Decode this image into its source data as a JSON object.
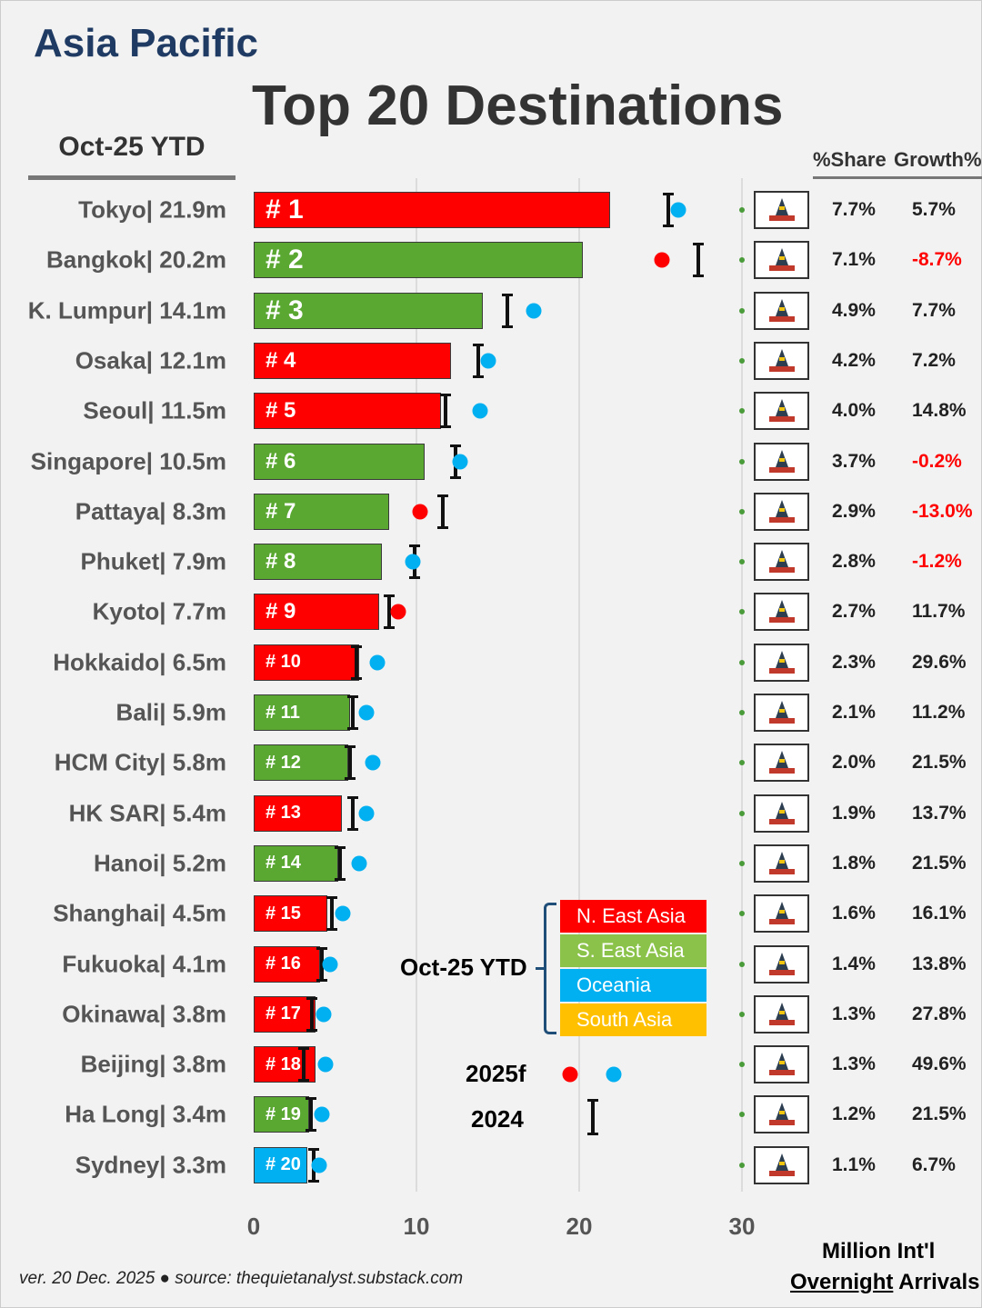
{
  "header": {
    "region": "Asia Pacific",
    "title": "Top 20 Destinations",
    "period": "Oct-25 YTD",
    "share_header": "%Share",
    "growth_header": "Growth%"
  },
  "legend": {
    "period": "Oct-25 YTD",
    "regions": [
      {
        "name": "N. East Asia",
        "color": "#ff0000"
      },
      {
        "name": "S. East Asia",
        "color": "#8bc34a"
      },
      {
        "name": "Oceania",
        "color": "#00b0f0"
      },
      {
        "name": "South Asia",
        "color": "#ffc000"
      }
    ],
    "forecast_label": "2025f",
    "prior_label": "2024"
  },
  "footer": {
    "note": "ver. 20 Dec. 2025 ● source: thequietanalyst.substack.com",
    "units_line1": "Million Int'l",
    "units_line2a": "Overnight",
    "units_line2b": " Arrivals"
  },
  "chart_data": {
    "type": "bar",
    "orientation": "horizontal",
    "xlim": [
      0,
      30
    ],
    "xticks": [
      "0",
      "10",
      "20",
      "30"
    ],
    "xlabel": "Million Int'l Overnight Arrivals",
    "grid": true,
    "series_colors": {
      "N. East Asia": "#ff0000",
      "S. East Asia": "#5aa832",
      "Oceania": "#00b0f0",
      "South Asia": "#ffc000"
    },
    "rows": [
      {
        "rank": "# 1",
        "label": "Tokyo| 21.9m",
        "value": 21.9,
        "region": "N. East Asia",
        "v2024": 25.5,
        "f2025": 26.1,
        "dot": "#00b0f0",
        "icon": "tokyo-tower-icon",
        "share": "7.7%",
        "growth": "5.7%",
        "neg": false
      },
      {
        "rank": "# 2",
        "label": "Bangkok| 20.2m",
        "value": 20.2,
        "region": "S. East Asia",
        "v2024": 27.3,
        "f2025": 25.1,
        "dot": "#ff0000",
        "icon": "muay-thai-icon",
        "share": "7.1%",
        "growth": "-8.7%",
        "neg": true
      },
      {
        "rank": "# 3",
        "label": "K. Lumpur| 14.1m",
        "value": 14.1,
        "region": "S. East Asia",
        "v2024": 15.6,
        "f2025": 17.2,
        "dot": "#00b0f0",
        "icon": "petronas-towers-icon",
        "share": "4.9%",
        "growth": "7.7%",
        "neg": false
      },
      {
        "rank": "# 4",
        "label": "Osaka| 12.1m",
        "value": 12.1,
        "region": "N. East Asia",
        "v2024": 13.8,
        "f2025": 14.4,
        "dot": "#00b0f0",
        "icon": "osaka-castle-icon",
        "share": "4.2%",
        "growth": "7.2%",
        "neg": false
      },
      {
        "rank": "# 5",
        "label": "Seoul| 11.5m",
        "value": 11.5,
        "region": "N. East Asia",
        "v2024": 11.8,
        "f2025": 13.9,
        "dot": "#00b0f0",
        "icon": "seoul-icon",
        "share": "4.0%",
        "growth": "14.8%",
        "neg": false
      },
      {
        "rank": "# 6",
        "label": "Singapore| 10.5m",
        "value": 10.5,
        "region": "S. East Asia",
        "v2024": 12.4,
        "f2025": 12.7,
        "dot": "#00b0f0",
        "icon": "marina-bay-icon",
        "share": "3.7%",
        "growth": "-0.2%",
        "neg": true
      },
      {
        "rank": "# 7",
        "label": "Pattaya| 8.3m",
        "value": 8.3,
        "region": "S. East Asia",
        "v2024": 11.6,
        "f2025": 10.2,
        "dot": "#ff0000",
        "icon": "pattaya-sign-icon",
        "share": "2.9%",
        "growth": "-13.0%",
        "neg": true
      },
      {
        "rank": "# 8",
        "label": "Phuket| 7.9m",
        "value": 7.9,
        "region": "S. East Asia",
        "v2024": 9.9,
        "f2025": 9.8,
        "dot": "#00b0f0",
        "icon": "big-buddha-icon",
        "share": "2.8%",
        "growth": "-1.2%",
        "neg": true
      },
      {
        "rank": "# 9",
        "label": "Kyoto| 7.7m",
        "value": 7.7,
        "region": "N. East Asia",
        "v2024": 8.3,
        "f2025": 8.9,
        "dot": "#ff0000",
        "icon": "geisha-icon",
        "share": "2.7%",
        "growth": "11.7%",
        "neg": false
      },
      {
        "rank": "# 10",
        "label": "Hokkaido| 6.5m",
        "value": 6.5,
        "region": "N. East Asia",
        "v2024": 6.3,
        "f2025": 7.6,
        "dot": "#00b0f0",
        "icon": "torii-gate-icon",
        "share": "2.3%",
        "growth": "29.6%",
        "neg": false
      },
      {
        "rank": "# 11",
        "label": "Bali| 5.9m",
        "value": 5.9,
        "region": "S. East Asia",
        "v2024": 6.1,
        "f2025": 6.9,
        "dot": "#00b0f0",
        "icon": "bali-gate-icon",
        "share": "2.1%",
        "growth": "11.2%",
        "neg": false
      },
      {
        "rank": "# 12",
        "label": "HCM City| 5.8m",
        "value": 5.8,
        "region": "S. East Asia",
        "v2024": 5.9,
        "f2025": 7.3,
        "dot": "#00b0f0",
        "icon": "city-hall-icon",
        "share": "2.0%",
        "growth": "21.5%",
        "neg": false
      },
      {
        "rank": "# 13",
        "label": "HK SAR| 5.4m",
        "value": 5.4,
        "region": "N. East Asia",
        "v2024": 6.1,
        "f2025": 6.9,
        "dot": "#00b0f0",
        "icon": "skyline-icon",
        "share": "1.9%",
        "growth": "13.7%",
        "neg": false
      },
      {
        "rank": "# 14",
        "label": "Hanoi| 5.2m",
        "value": 5.2,
        "region": "S. East Asia",
        "v2024": 5.3,
        "f2025": 6.5,
        "dot": "#00b0f0",
        "icon": "temple-icon",
        "share": "1.8%",
        "growth": "21.5%",
        "neg": false
      },
      {
        "rank": "# 15",
        "label": "Shanghai| 4.5m",
        "value": 4.5,
        "region": "N. East Asia",
        "v2024": 4.8,
        "f2025": 5.5,
        "dot": "#00b0f0",
        "icon": "pearl-tower-icon",
        "share": "1.6%",
        "growth": "16.1%",
        "neg": false
      },
      {
        "rank": "# 16",
        "label": "Fukuoka| 4.1m",
        "value": 4.1,
        "region": "N. East Asia",
        "v2024": 4.2,
        "f2025": 4.7,
        "dot": "#00b0f0",
        "icon": "flower-emblem-icon",
        "share": "1.4%",
        "growth": "13.8%",
        "neg": false
      },
      {
        "rank": "# 17",
        "label": "Okinawa| 3.8m",
        "value": 3.8,
        "region": "N. East Asia",
        "v2024": 3.6,
        "f2025": 4.3,
        "dot": "#00b0f0",
        "icon": "shisa-icon",
        "share": "1.3%",
        "growth": "27.8%",
        "neg": false
      },
      {
        "rank": "# 18",
        "label": "Beijing| 3.8m",
        "value": 3.8,
        "region": "N. East Asia",
        "v2024": 3.1,
        "f2025": 4.4,
        "dot": "#00b0f0",
        "icon": "tiananmen-icon",
        "share": "1.3%",
        "growth": "49.6%",
        "neg": false
      },
      {
        "rank": "# 19",
        "label": "Ha Long| 3.4m",
        "value": 3.4,
        "region": "S. East Asia",
        "v2024": 3.5,
        "f2025": 4.2,
        "dot": "#00b0f0",
        "icon": "ha-long-bay-icon",
        "share": "1.2%",
        "growth": "21.5%",
        "neg": false
      },
      {
        "rank": "# 20",
        "label": "Sydney| 3.3m",
        "value": 3.3,
        "region": "Oceania",
        "v2024": 3.7,
        "f2025": 4.0,
        "dot": "#00b0f0",
        "icon": "opera-house-icon",
        "share": "1.1%",
        "growth": "6.7%",
        "neg": false
      }
    ]
  }
}
